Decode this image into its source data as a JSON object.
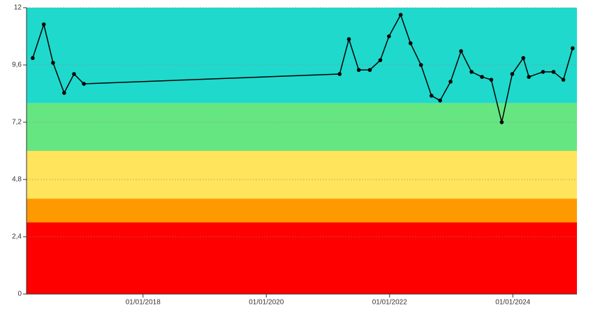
{
  "chart_data": {
    "type": "line",
    "x": [
      2016.21,
      2016.39,
      2016.54,
      2016.72,
      2016.88,
      2017.04,
      2021.19,
      2021.34,
      2021.5,
      2021.68,
      2021.85,
      2021.99,
      2022.18,
      2022.34,
      2022.51,
      2022.68,
      2022.82,
      2022.99,
      2023.16,
      2023.33,
      2023.5,
      2023.65,
      2023.82,
      2023.99,
      2024.17,
      2024.26,
      2024.49,
      2024.66,
      2024.82,
      2024.97
    ],
    "series": [
      {
        "color": "#000000",
        "values": [
          9.89,
          11.3,
          9.69,
          8.43,
          9.22,
          8.81,
          9.22,
          10.68,
          9.39,
          9.39,
          9.8,
          10.8,
          11.7,
          10.51,
          9.6,
          8.31,
          8.11,
          8.9,
          10.18,
          9.31,
          9.1,
          8.98,
          7.2,
          9.22,
          9.89,
          9.1,
          9.31,
          9.31,
          8.98,
          10.3
        ]
      }
    ],
    "bands": [
      {
        "from": 0,
        "to": 3,
        "color": "#ff0000"
      },
      {
        "from": 3,
        "to": 4,
        "color": "#ff9900"
      },
      {
        "from": 4,
        "to": 6,
        "color": "#ffe45c"
      },
      {
        "from": 6,
        "to": 8,
        "color": "#66e680"
      },
      {
        "from": 8,
        "to": 12,
        "color": "#1fd9cc"
      }
    ],
    "xlim": [
      2016.11,
      2025.04
    ],
    "xticks": [
      {
        "value": 2018,
        "label": "01/01/2018"
      },
      {
        "value": 2020,
        "label": "01/01/2020"
      },
      {
        "value": 2022,
        "label": "01/01/2022"
      },
      {
        "value": 2024,
        "label": "01/01/2024"
      }
    ],
    "ylim": [
      0,
      12
    ],
    "yticks": [
      0,
      {
        "value": 2.4,
        "label": "2,4"
      },
      {
        "value": 4.8,
        "label": "4,8"
      },
      {
        "value": 7.2,
        "label": "7,2"
      },
      {
        "value": 9.6,
        "label": "9,6"
      },
      12
    ],
    "grid": true
  }
}
